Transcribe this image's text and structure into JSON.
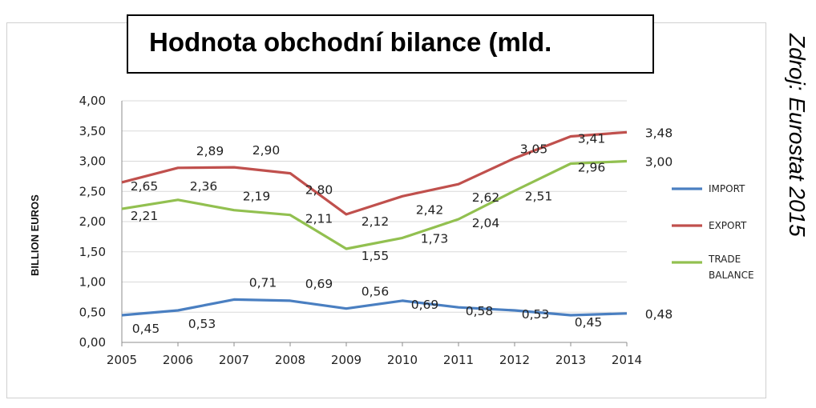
{
  "title": "Hodnota obchodní bilance (mld.",
  "source_note": "Zdroj: Eurostat 2015",
  "chart_data": {
    "type": "line",
    "title": "Hodnota obchodní bilance (mld.",
    "xlabel": "",
    "ylabel": "BILLION EUROS",
    "x": [
      "2005",
      "2006",
      "2007",
      "2008",
      "2009",
      "2010",
      "2011",
      "2012",
      "2013",
      "2014"
    ],
    "ylim": [
      0,
      4
    ],
    "yticks": [
      "0,00",
      "0,50",
      "1,00",
      "1,50",
      "2,00",
      "2,50",
      "3,00",
      "3,50",
      "4,00"
    ],
    "grid": "horizontal",
    "legend_position": "right",
    "series": [
      {
        "name": "IMPORT",
        "color": "#4a7fc1",
        "values": [
          0.45,
          0.53,
          0.71,
          0.69,
          0.56,
          0.69,
          0.58,
          0.53,
          0.45,
          0.48
        ],
        "labels": [
          "0,45",
          "0,53",
          "0,71",
          "0,69",
          "0,56",
          "0,69",
          "0,58",
          "0,53",
          "0,45",
          "0,48"
        ]
      },
      {
        "name": "EXPORT",
        "color": "#c0504d",
        "values": [
          2.65,
          2.89,
          2.9,
          2.8,
          2.12,
          2.42,
          2.62,
          3.05,
          3.41,
          3.48
        ],
        "labels": [
          "2,65",
          "2,89",
          "2,90",
          "2,80",
          "2,12",
          "2,42",
          "2,62",
          "3,05",
          "3,41",
          "3,48"
        ]
      },
      {
        "name": "TRADE BALANCE",
        "legend_lines": [
          "TRADE",
          "BALANCE"
        ],
        "color": "#92c050",
        "values": [
          2.21,
          2.36,
          2.19,
          2.11,
          1.55,
          1.73,
          2.04,
          2.51,
          2.96,
          3.0
        ],
        "labels": [
          "2,21",
          "2,36",
          "2,19",
          "2,11",
          "1,55",
          "1,73",
          "2,04",
          "2,51",
          "2,96",
          "3,00"
        ]
      }
    ]
  }
}
